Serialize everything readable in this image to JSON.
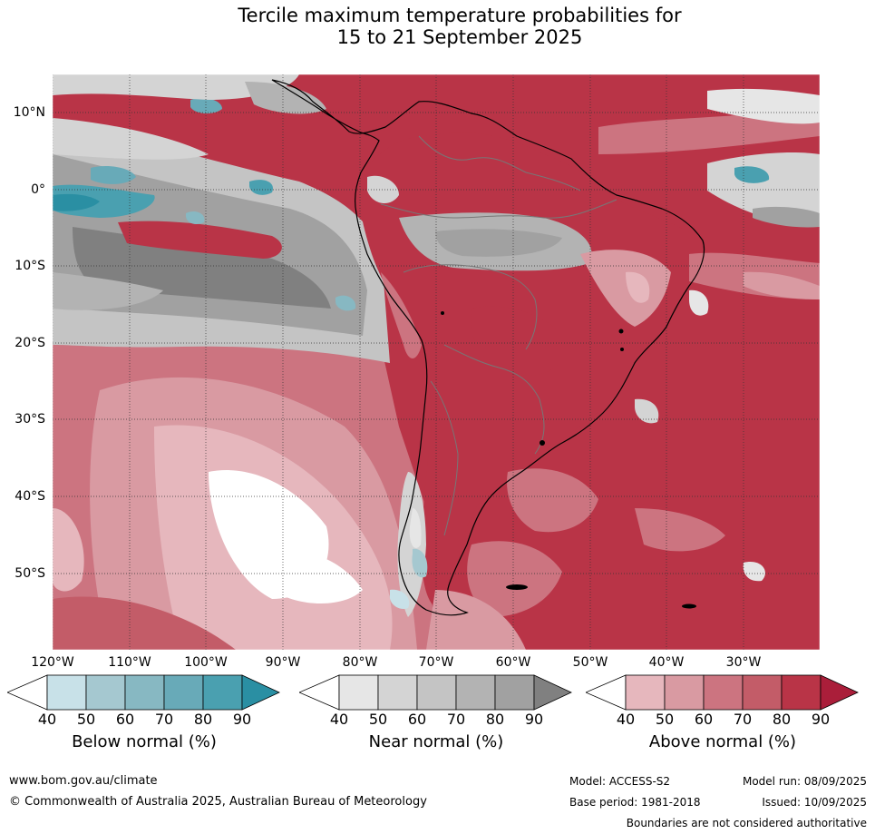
{
  "title": {
    "line1": "Tercile maximum temperature probabilities for",
    "line2": "15 to 21 September 2025"
  },
  "map": {
    "lat_labels": [
      "10°N",
      "0°",
      "10°S",
      "20°S",
      "30°S",
      "40°S",
      "50°S"
    ],
    "lon_labels": [
      "120°W",
      "110°W",
      "100°W",
      "90°W",
      "80°W",
      "70°W",
      "60°W",
      "50°W",
      "40°W",
      "30°W"
    ],
    "region": "South America"
  },
  "legends": [
    {
      "title": "Below normal (%)",
      "ticks": [
        "40",
        "50",
        "60",
        "70",
        "80",
        "90"
      ],
      "colors": [
        "#ffffff",
        "#c8e1e8",
        "#a5c8d0",
        "#87b8c2",
        "#68aab8",
        "#4aa0b0",
        "#2a8fa3"
      ]
    },
    {
      "title": "Near normal (%)",
      "ticks": [
        "40",
        "50",
        "60",
        "70",
        "80",
        "90"
      ],
      "colors": [
        "#ffffff",
        "#e6e6e6",
        "#d4d4d4",
        "#c4c4c4",
        "#b3b3b3",
        "#a1a1a1",
        "#808080"
      ]
    },
    {
      "title": "Above normal (%)",
      "ticks": [
        "40",
        "50",
        "60",
        "70",
        "80",
        "90"
      ],
      "colors": [
        "#ffffff",
        "#e6b7bd",
        "#d99aa2",
        "#cc7480",
        "#c35c68",
        "#b93447",
        "#aa1e3a"
      ]
    }
  ],
  "footer": {
    "website": "www.bom.gov.au/climate",
    "copyright": "© Commonwealth of Australia 2025, Australian Bureau of Meteorology",
    "model": "Model: ACCESS-S2",
    "model_run": "Model run: 08/09/2025",
    "base_period": "Base period: 1981-2018",
    "issued": "Issued: 10/09/2025",
    "disclaimer": "Boundaries are not considered authoritative"
  }
}
